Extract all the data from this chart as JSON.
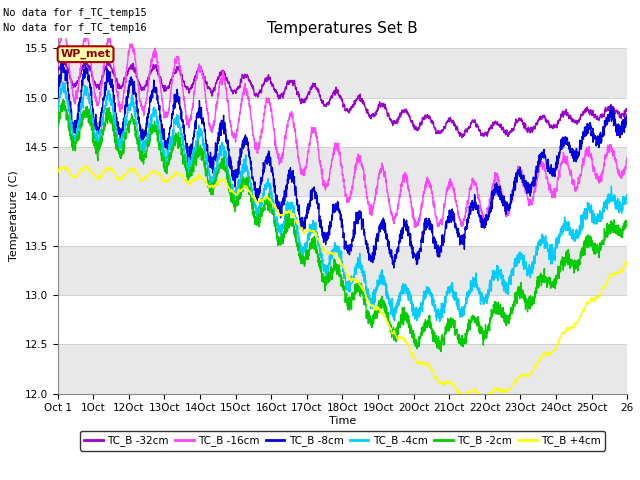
{
  "title": "Temperatures Set B",
  "xlabel": "Time",
  "ylabel": "Temperature (C)",
  "annotations": [
    "No data for f_TC_temp15",
    "No data for f_TC_temp16"
  ],
  "legend_label": "WP_met",
  "ylim": [
    12.0,
    15.6
  ],
  "yticks": [
    12.0,
    12.5,
    13.0,
    13.5,
    14.0,
    14.5,
    15.0,
    15.5
  ],
  "x_tick_labels": [
    "Oct 1",
    "1Oct",
    "12Oct",
    "13Oct",
    "14Oct",
    "15Oct",
    "16Oct",
    "17Oct",
    "18Oct",
    "19Oct",
    "20Oct",
    "21Oct",
    "22Oct",
    "23Oct",
    "24Oct",
    "25Oct",
    "26"
  ],
  "legend_colors": [
    "#9900cc",
    "#ff44ff",
    "#0000dd",
    "#00ccff",
    "#00cc00",
    "#ffff00"
  ],
  "legend_labels": [
    "TC_B -32cm",
    "TC_B -16cm",
    "TC_B -8cm",
    "TC_B -4cm",
    "TC_B -2cm",
    "TC_B +4cm"
  ],
  "background_color": "#ffffff",
  "grid_band_color": "#e8e8e8",
  "grid_line_color": "#cccccc",
  "seed": 42,
  "n_days": 25,
  "pts_per_day": 144
}
